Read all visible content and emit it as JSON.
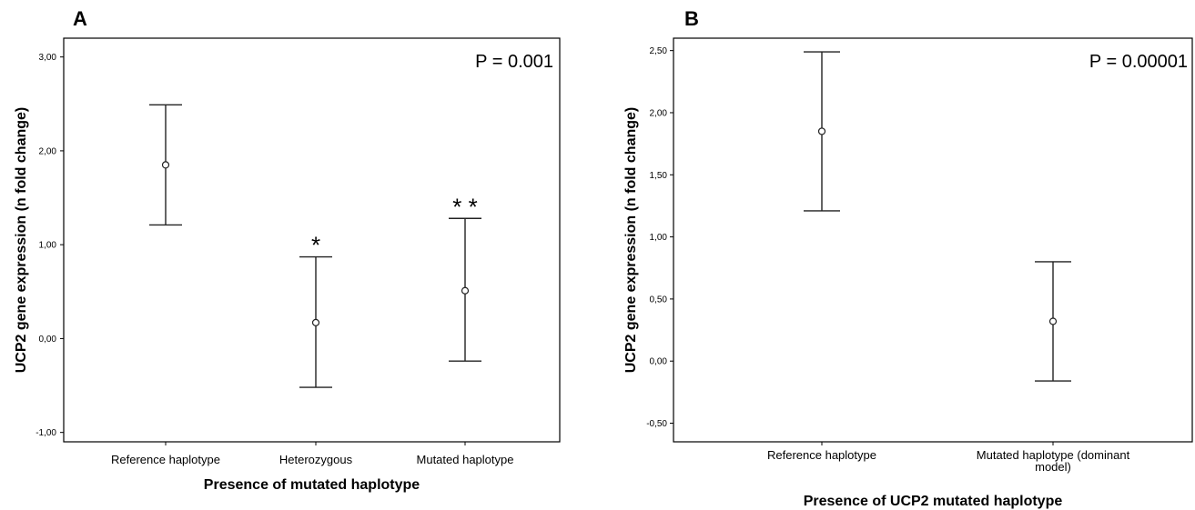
{
  "chart_data": [
    {
      "panel": "A",
      "type": "scatter",
      "subtype": "error-bar",
      "annotation": "P = 0.001",
      "xlabel": "Presence of mutated haplotype",
      "ylabel": "UCP2 gene expression (n fold change)",
      "ylim": [
        -1.1,
        3.2
      ],
      "yticks": [
        {
          "value": 3,
          "label": "3,00"
        },
        {
          "value": 2,
          "label": "2,00"
        },
        {
          "value": 1,
          "label": "1,00"
        },
        {
          "value": 0,
          "label": "0,00"
        },
        {
          "value": -1,
          "label": "-1,00"
        }
      ],
      "categories": [
        {
          "label": [
            "Reference haplotype"
          ],
          "mean": 1.85,
          "lower": 1.21,
          "upper": 2.49,
          "marker": ""
        },
        {
          "label": [
            "Heterozygous"
          ],
          "mean": 0.17,
          "lower": -0.52,
          "upper": 0.87,
          "marker": "*"
        },
        {
          "label": [
            "Mutated haplotype"
          ],
          "mean": 0.51,
          "lower": -0.24,
          "upper": 1.28,
          "marker": "* *"
        }
      ]
    },
    {
      "panel": "B",
      "type": "scatter",
      "subtype": "error-bar",
      "annotation": "P = 0.00001",
      "xlabel": "Presence of UCP2 mutated haplotype",
      "ylabel": "UCP2 gene expression (n fold change)",
      "ylim": [
        -0.65,
        2.6
      ],
      "yticks": [
        {
          "value": 2.5,
          "label": "2,50"
        },
        {
          "value": 2.0,
          "label": "2,00"
        },
        {
          "value": 1.5,
          "label": "1,50"
        },
        {
          "value": 1.0,
          "label": "1,00"
        },
        {
          "value": 0.5,
          "label": "0,50"
        },
        {
          "value": 0.0,
          "label": "0,00"
        },
        {
          "value": -0.5,
          "label": "-0,50"
        }
      ],
      "categories": [
        {
          "label": [
            "Reference haplotype"
          ],
          "mean": 1.85,
          "lower": 1.21,
          "upper": 2.49,
          "marker": ""
        },
        {
          "label": [
            "Mutated haplotype (dominant",
            "model)"
          ],
          "mean": 0.32,
          "lower": -0.16,
          "upper": 0.8,
          "marker": ""
        }
      ]
    }
  ]
}
